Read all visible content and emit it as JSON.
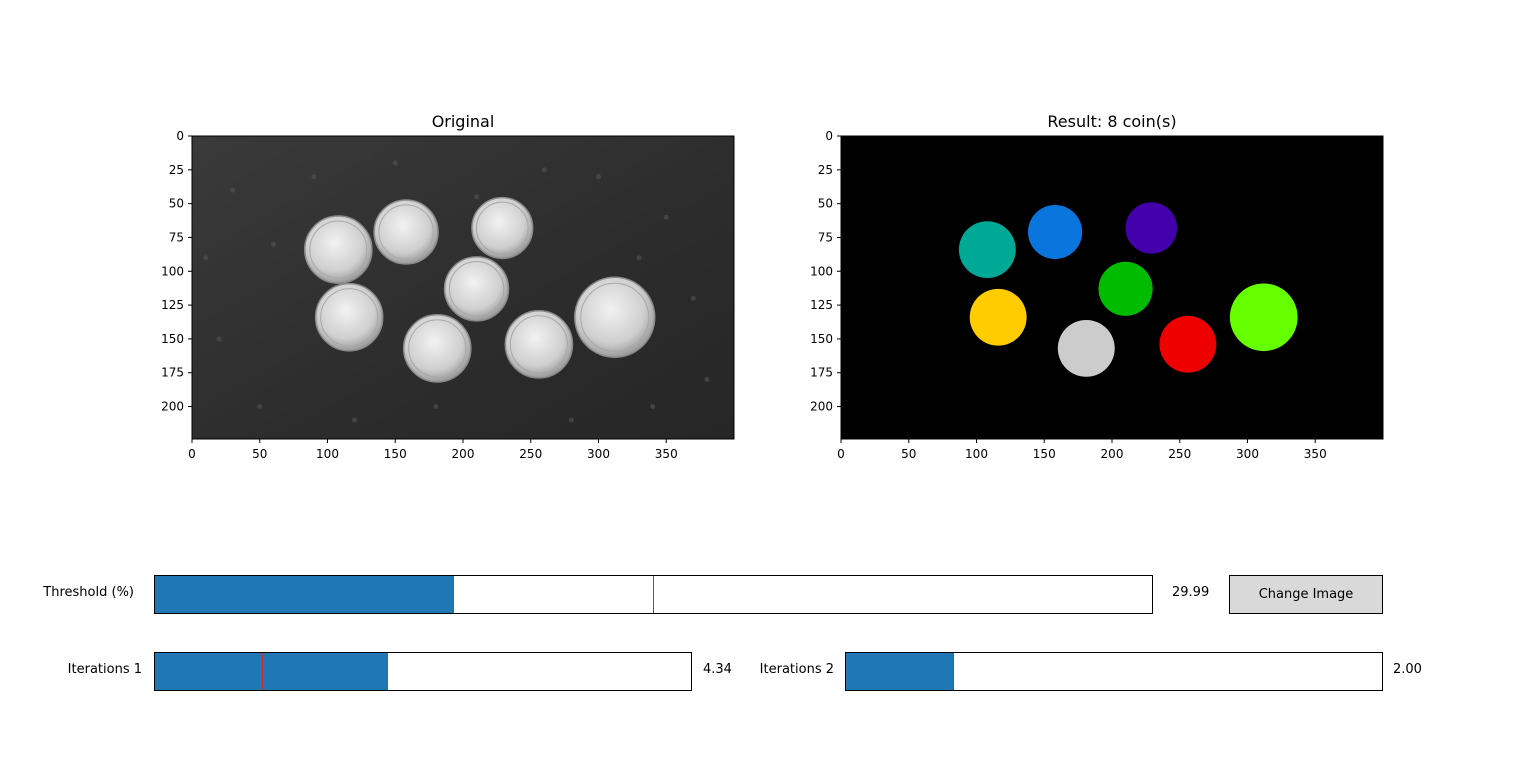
{
  "plots": {
    "original": {
      "title": "Original",
      "x_ticks": [
        "0",
        "50",
        "100",
        "150",
        "200",
        "250",
        "300",
        "350"
      ],
      "y_ticks": [
        "0",
        "25",
        "50",
        "75",
        "100",
        "125",
        "150",
        "175",
        "200"
      ]
    },
    "result": {
      "title": "Result: 8 coin(s)",
      "x_ticks": [
        "0",
        "50",
        "100",
        "150",
        "200",
        "250",
        "300",
        "350"
      ],
      "y_ticks": [
        "0",
        "25",
        "50",
        "75",
        "100",
        "125",
        "150",
        "175",
        "200"
      ],
      "labels": [
        {
          "color": "#00a896",
          "cx": 108,
          "cy": 84,
          "r": 21
        },
        {
          "color": "#0a75dd",
          "cx": 158,
          "cy": 71,
          "r": 20
        },
        {
          "color": "#4400aa",
          "cx": 229,
          "cy": 68,
          "r": 19
        },
        {
          "color": "#00bb00",
          "cx": 210,
          "cy": 113,
          "r": 20
        },
        {
          "color": "#ffcc00",
          "cx": 116,
          "cy": 134,
          "r": 21
        },
        {
          "color": "#cccccc",
          "cx": 181,
          "cy": 157,
          "r": 21
        },
        {
          "color": "#ee0000",
          "cx": 256,
          "cy": 154,
          "r": 21
        },
        {
          "color": "#66ff00",
          "cx": 312,
          "cy": 134,
          "r": 25
        }
      ]
    }
  },
  "controls": {
    "threshold": {
      "label": "Threshold (%)",
      "value": 29.99,
      "value_text": "29.99",
      "min": 0,
      "max": 100,
      "initial": 50
    },
    "iterations1": {
      "label": "Iterations 1",
      "value": 4.34,
      "value_text": "4.34",
      "min": 0,
      "max": 10,
      "initial": 2
    },
    "iterations2": {
      "label": "Iterations 2",
      "value": 2.0,
      "value_text": "2.00",
      "min": 0,
      "max": 10,
      "initial": 2
    },
    "change_image_label": "Change Image"
  },
  "colors": {
    "slider_fill": "#1f77b4",
    "slider_initial": "#d62728",
    "button_bg": "#d9d9d9"
  }
}
